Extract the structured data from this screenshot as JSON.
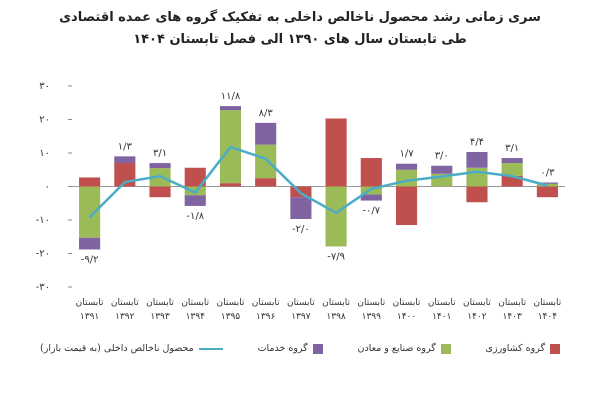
{
  "chart_data": {
    "type": "bar",
    "title": "سری زمانی رشد محصول ناخالص داخلی به تفکیک گروه های عمده اقتصادی",
    "subtitle": "طی تابستان سال های ۱۳۹۰ الی فصل تابستان ۱۴۰۴",
    "categories": [
      "تابستان ۱۳۹۱",
      "تابستان ۱۳۹۲",
      "تابستان ۱۳۹۳",
      "تابستان ۱۳۹۴",
      "تابستان ۱۳۹۵",
      "تابستان ۱۳۹۶",
      "تابستان ۱۳۹۷",
      "تابستان ۱۳۹۸",
      "تابستان ۱۳۹۹",
      "تابستان ۱۴۰۰",
      "تابستان ۱۴۰۱",
      "تابستان ۱۴۰۲",
      "تابستان ۱۴۰۳",
      "تابستان ۱۴۰۴"
    ],
    "series": [
      {
        "name": "گروه کشاورزی",
        "type": "bar",
        "color": "#c0504d",
        "values": [
          2.7,
          7,
          -3.2,
          5.6,
          1,
          2.5,
          -3.2,
          20.3,
          8.5,
          -11.5,
          0,
          -4.7,
          3.2,
          -3.2
        ]
      },
      {
        "name": "گروه صنایع و معادن",
        "type": "bar",
        "color": "#9bbb59",
        "values": [
          -15.3,
          0,
          5.5,
          -2.6,
          21.8,
          10,
          0,
          -17.9,
          -2.4,
          5,
          3.8,
          5.6,
          3.8,
          0.8
        ]
      },
      {
        "name": "گروه خدمات",
        "type": "bar",
        "color": "#8064a2",
        "values": [
          -3.5,
          2,
          1.5,
          -3.2,
          1.2,
          6.5,
          -6.5,
          0,
          -1.8,
          1.8,
          2.4,
          4.7,
          1.5,
          0.4
        ]
      },
      {
        "name": "محصول ناخالص داخلی (به قیمت بازار)",
        "type": "line",
        "color": "#4bacc6",
        "values": [
          -9.2,
          1.3,
          3.1,
          -1.8,
          11.8,
          8.3,
          -2.0,
          -7.9,
          -0.7,
          1.7,
          3.0,
          4.4,
          3.1,
          0.3
        ],
        "value_labels": [
          "-۹/۲",
          "۱/۳",
          "۳/۱",
          "-۱/۸",
          "۱۱/۸",
          "۸/۳",
          "-۲/۰",
          "-۷/۹",
          "-۰/۷",
          "۱/۷",
          "۳/۰",
          "۴/۴",
          "۳/۱",
          "۰/۳"
        ]
      }
    ],
    "ylim": [
      -30,
      30
    ],
    "yticks": [
      {
        "value": -30,
        "label": "-۳۰"
      },
      {
        "value": -20,
        "label": "-۲۰"
      },
      {
        "value": -10,
        "label": "-۱۰"
      },
      {
        "value": 0,
        "label": "۰"
      },
      {
        "value": 10,
        "label": "۱۰"
      },
      {
        "value": 20,
        "label": "۲۰"
      },
      {
        "value": 30,
        "label": "۳۰"
      }
    ],
    "grid": false
  }
}
